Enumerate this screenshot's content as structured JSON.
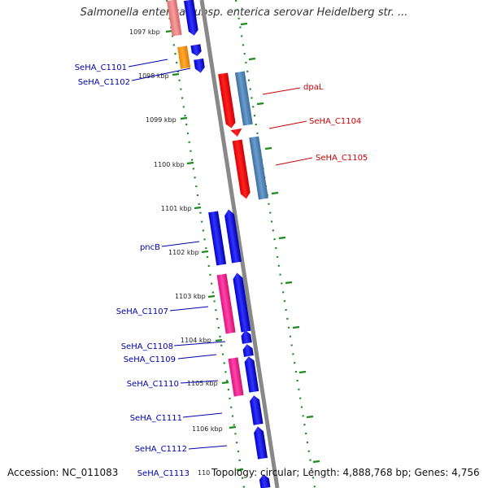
{
  "title": "Salmonella enterica subsp. enterica serovar Heidelberg str. ...",
  "footer": {
    "accession": "Accession: NC_011083",
    "topology": "Topology: circular; Length: 4,888,768 bp; Genes: 4,756"
  },
  "colors": {
    "backbone": "#888888",
    "ticks": "#1a8a1a",
    "forward_label": "#0000aa",
    "reverse_label": "#cc0000"
  },
  "kbp_ticks": [
    "1097 kbp",
    "1098 kbp",
    "1099 kbp",
    "1100 kbp",
    "1101 kbp",
    "1102 kbp",
    "1103 kbp",
    "1104 kbp",
    "1105 kbp",
    "1106 kbp",
    "110"
  ],
  "features": [
    {
      "name": "SeHA_C1101",
      "strand": "left",
      "color": "#ff9900"
    },
    {
      "name": "SeHA_C1102",
      "strand": "left",
      "color": "#0000ee"
    },
    {
      "name": "dpaL",
      "strand": "right",
      "color": "#ff0000"
    },
    {
      "name": "SeHA_C1104",
      "strand": "right",
      "color": "#ff0000"
    },
    {
      "name": "SeHA_C1105",
      "strand": "right",
      "color": "#4682b4"
    },
    {
      "name": "pncB",
      "strand": "left",
      "color": "#0000ee"
    },
    {
      "name": "SeHA_C1107",
      "strand": "left",
      "color": "#ff1493"
    },
    {
      "name": "SeHA_C1108",
      "strand": "left",
      "color": "#0000ee"
    },
    {
      "name": "SeHA_C1109",
      "strand": "left",
      "color": "#0000ee"
    },
    {
      "name": "SeHA_C1110",
      "strand": "left",
      "color": "#ff1493"
    },
    {
      "name": "SeHA_C1111",
      "strand": "left",
      "color": "#0000ee"
    },
    {
      "name": "SeHA_C1112",
      "strand": "left",
      "color": "#0000ee"
    },
    {
      "name": "SeHA_C1113",
      "strand": "left",
      "color": "#0000ee"
    }
  ]
}
